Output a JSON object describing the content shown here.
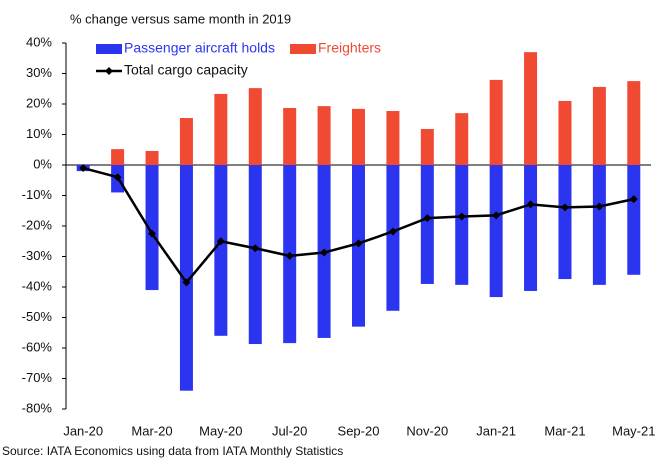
{
  "chart_data": {
    "type": "bar",
    "title": "% change versus same month in 2019",
    "source": "Source: IATA Economics using data from IATA Monthly Statistics",
    "categories": [
      "Jan-20",
      null,
      "Mar-20",
      null,
      "May-20",
      null,
      "Jul-20",
      null,
      "Sep-20",
      null,
      "Nov-20",
      null,
      "Jan-21",
      null,
      "Mar-21",
      null,
      "May-21"
    ],
    "series": [
      {
        "name": "Passenger aircraft holds",
        "color": "#2b35f0",
        "type": "bar",
        "values": [
          -2,
          -9,
          -41,
          -74,
          -56,
          -58.7,
          -58.4,
          -56.7,
          -53,
          -47.8,
          -39,
          -39.3,
          -43.3,
          -41.3,
          -37.4,
          -39.3,
          -36
        ]
      },
      {
        "name": "Freighters",
        "color": "#f04a32",
        "type": "bar",
        "values": [
          0,
          5.2,
          4.6,
          15.4,
          23.3,
          25.2,
          18.7,
          19.3,
          18.4,
          17.7,
          11.8,
          17,
          27.9,
          37,
          21,
          25.6,
          27.5
        ]
      },
      {
        "name": "Total cargo capacity",
        "color": "#000000",
        "type": "line",
        "values": [
          -1,
          -4,
          -22.5,
          -38.5,
          -25,
          -27.3,
          -29.8,
          -28.7,
          -25.7,
          -21.8,
          -17.4,
          -16.9,
          -16.5,
          -12.9,
          -13.9,
          -13.6,
          -11.2
        ]
      }
    ],
    "ylim": [
      -80,
      40
    ],
    "yticks": [
      {
        "value": -80,
        "label": "-80%"
      },
      {
        "value": -70,
        "label": "-70%"
      },
      {
        "value": -60,
        "label": "-60%"
      },
      {
        "value": -50,
        "label": "-50%"
      },
      {
        "value": -40,
        "label": "-40%"
      },
      {
        "value": -30,
        "label": "-30%"
      },
      {
        "value": -20,
        "label": "-20%"
      },
      {
        "value": -10,
        "label": "-10%"
      },
      {
        "value": 0,
        "label": "0%"
      },
      {
        "value": 10,
        "label": "10%"
      },
      {
        "value": 20,
        "label": "20%"
      },
      {
        "value": 30,
        "label": "30%"
      },
      {
        "value": 40,
        "label": "40%"
      }
    ]
  }
}
